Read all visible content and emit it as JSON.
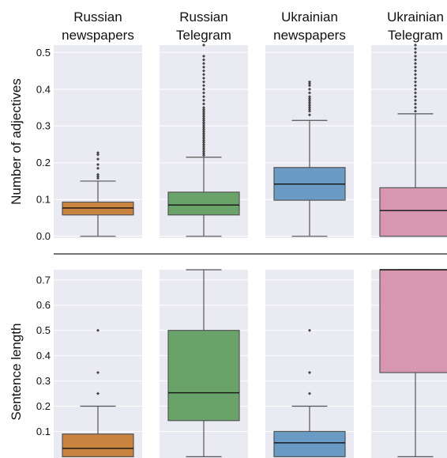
{
  "chart_data": {
    "type": "box",
    "columns": [
      {
        "title_lines": [
          "Russian",
          "newspapers"
        ],
        "color": "#c9843f"
      },
      {
        "title_lines": [
          "Russian",
          "Telegram"
        ],
        "color": "#6aa36a"
      },
      {
        "title_lines": [
          "Ukrainian",
          "newspapers"
        ],
        "color": "#6a9bc4"
      },
      {
        "title_lines": [
          "Ukrainian",
          "Telegram"
        ],
        "color": "#d797b1"
      }
    ],
    "panels": [
      {
        "ylabel": "Number of adjectives",
        "ylim": [
          -0.005,
          0.52
        ],
        "yticks": [
          {
            "value": 0.0,
            "label": "0.0"
          },
          {
            "value": 0.1,
            "label": "0.1"
          },
          {
            "value": 0.2,
            "label": "0.2"
          },
          {
            "value": 0.3,
            "label": "0.3"
          },
          {
            "value": 0.4,
            "label": "0.4"
          },
          {
            "value": 0.5,
            "label": "0.5"
          }
        ],
        "boxes": [
          {
            "whislo": 0.0,
            "q1": 0.058,
            "med": 0.077,
            "q3": 0.093,
            "whishi": 0.15,
            "fliers": [
              0.158,
              0.163,
              0.168,
              0.185,
              0.195,
              0.21,
              0.222,
              0.227
            ]
          },
          {
            "whislo": 0.0,
            "q1": 0.058,
            "med": 0.085,
            "q3": 0.12,
            "whishi": 0.215,
            "fliers": [
              0.22,
              0.225,
              0.23,
              0.235,
              0.24,
              0.245,
              0.25,
              0.255,
              0.26,
              0.265,
              0.27,
              0.275,
              0.28,
              0.285,
              0.29,
              0.295,
              0.3,
              0.305,
              0.31,
              0.315,
              0.32,
              0.325,
              0.33,
              0.335,
              0.34,
              0.345,
              0.35,
              0.36,
              0.37,
              0.38,
              0.39,
              0.4,
              0.41,
              0.42,
              0.43,
              0.44,
              0.45,
              0.46,
              0.47,
              0.48,
              0.49,
              0.52
            ]
          },
          {
            "whislo": 0.0,
            "q1": 0.098,
            "med": 0.142,
            "q3": 0.187,
            "whishi": 0.315,
            "fliers": [
              0.33,
              0.34,
              0.345,
              0.35,
              0.355,
              0.36,
              0.365,
              0.37,
              0.375,
              0.38,
              0.39,
              0.4,
              0.41,
              0.415,
              0.42
            ]
          },
          {
            "whislo": 0.0,
            "q1": 0.0,
            "med": 0.07,
            "q3": 0.132,
            "whishi": 0.333,
            "fliers": [
              0.34,
              0.35,
              0.36,
              0.37,
              0.38,
              0.39,
              0.4,
              0.41,
              0.42,
              0.43,
              0.44,
              0.45,
              0.46,
              0.47,
              0.48,
              0.49,
              0.5,
              0.51,
              0.52
            ]
          }
        ]
      },
      {
        "ylabel": "Sentence length",
        "ylim": [
          -0.005,
          0.74
        ],
        "yticks": [
          {
            "value": 0.1,
            "label": "0.1"
          },
          {
            "value": 0.2,
            "label": "0.2"
          },
          {
            "value": 0.3,
            "label": "0.3"
          },
          {
            "value": 0.4,
            "label": "0.4"
          },
          {
            "value": 0.5,
            "label": "0.5"
          },
          {
            "value": 0.6,
            "label": "0.6"
          },
          {
            "value": 0.7,
            "label": "0.7"
          }
        ],
        "boxes": [
          {
            "whislo": 0.0,
            "q1": 0.0,
            "med": 0.033,
            "q3": 0.09,
            "whishi": 0.2,
            "fliers": [
              0.25,
              0.333,
              0.5
            ]
          },
          {
            "whislo": 0.0,
            "q1": 0.143,
            "med": 0.253,
            "q3": 0.5,
            "whishi": 0.74,
            "fliers": []
          },
          {
            "whislo": 0.0,
            "q1": 0.0,
            "med": 0.055,
            "q3": 0.1,
            "whishi": 0.2,
            "fliers": [
              0.25,
              0.333,
              0.5
            ]
          },
          {
            "whislo": 0.0,
            "q1": 0.333,
            "med": 0.74,
            "q3": 0.74,
            "whishi": 0.74,
            "fliers": []
          }
        ]
      }
    ],
    "grid": true,
    "style": "seaborn-darkgrid"
  }
}
